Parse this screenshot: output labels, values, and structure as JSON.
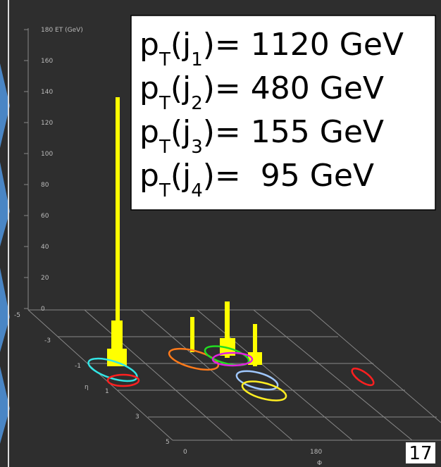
{
  "et_axis": {
    "ticks": [
      "180 ET (GeV)",
      "160",
      "140",
      "120",
      "100",
      "80",
      "60",
      "40",
      "20",
      "0"
    ]
  },
  "eta_axis": {
    "label": "η",
    "ticks": [
      "-5",
      "-3",
      "-1",
      "1",
      "3",
      "5"
    ]
  },
  "phi_axis": {
    "label": "Φ",
    "ticks": [
      "0",
      "180"
    ]
  },
  "jets": [
    {
      "p": "p",
      "t": "T",
      "open": "(j",
      "index": "1",
      "rest": ")= 1120 GeV"
    },
    {
      "p": "p",
      "t": "T",
      "open": "(j",
      "index": "2",
      "rest": ")= 480 GeV"
    },
    {
      "p": "p",
      "t": "T",
      "open": "(j",
      "index": "3",
      "rest": ")= 155 GeV"
    },
    {
      "p": "p",
      "t": "T",
      "open": "(j",
      "index": "4",
      "rest": ")=  95 GeV"
    }
  ],
  "page_number": "17"
}
